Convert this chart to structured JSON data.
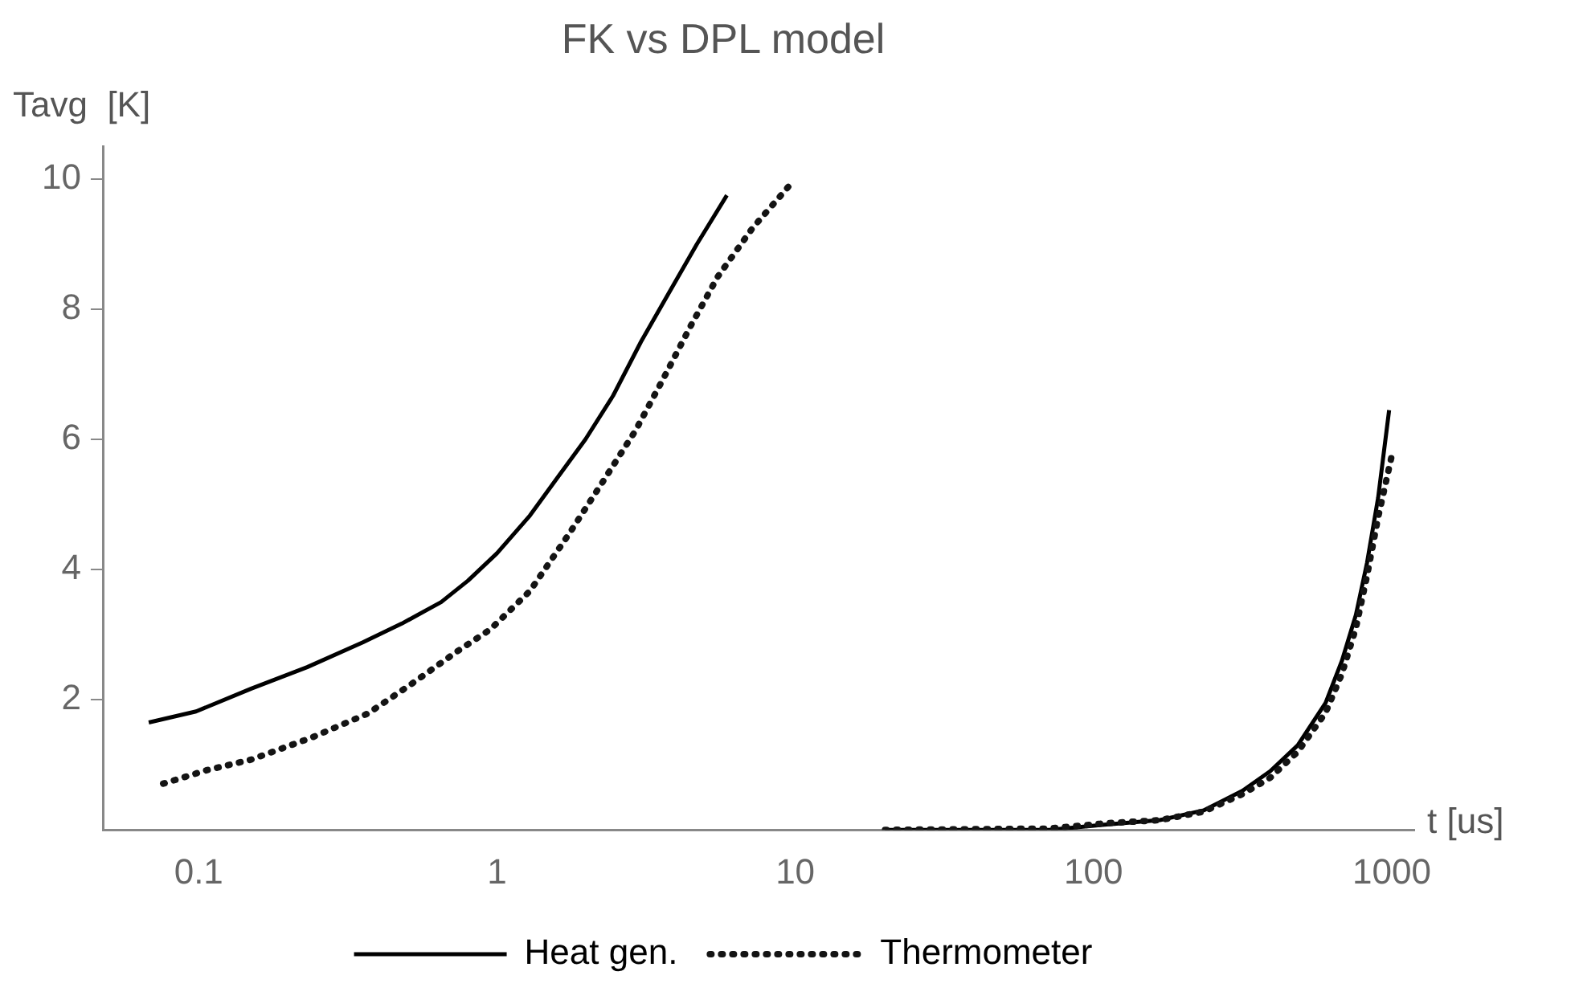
{
  "chart_data": {
    "type": "line",
    "title": "FK vs DPL model",
    "xlabel": "t [us]",
    "ylabel": "Tavg  [K]",
    "log": "x",
    "xlim": [
      0.048,
      1190
    ],
    "xticks": [
      0.1,
      1,
      10,
      100,
      1000
    ],
    "ylim": [
      0,
      10.5
    ],
    "yticks": [
      2,
      4,
      6,
      8,
      10
    ],
    "legend": "bottom",
    "marker": "none",
    "series": [
      {
        "name": "Heat gen.",
        "color": "#000000",
        "line_style": "solid",
        "x": [
          0.068,
          0.098,
          0.15,
          0.231,
          0.355,
          0.48,
          0.65,
          0.8,
          1.0,
          1.29,
          1.6,
          1.98,
          2.45,
          3.04,
          3.77,
          4.68,
          5.9,
          12,
          20,
          71,
          109,
          167,
          234,
          316,
          391,
          484,
          600,
          681,
          758,
          826,
          900,
          980
        ],
        "values": [
          1.65,
          1.82,
          2.17,
          2.5,
          2.88,
          3.17,
          3.5,
          3.83,
          4.25,
          4.83,
          5.42,
          6.0,
          6.67,
          7.5,
          8.25,
          9.0,
          9.75,
          null,
          0,
          0,
          0.08,
          0.15,
          0.3,
          0.6,
          0.9,
          1.3,
          1.95,
          2.6,
          3.3,
          4.1,
          5.1,
          6.45
        ]
      },
      {
        "name": "Thermometer",
        "color": "#141414",
        "line_style": "dotted",
        "x": [
          0.076,
          0.107,
          0.15,
          0.24,
          0.37,
          0.52,
          0.74,
          0.95,
          1.29,
          1.74,
          2.25,
          2.91,
          3.6,
          4.47,
          5.5,
          7.2,
          9.9,
          15,
          20,
          71,
          109,
          167,
          234,
          316,
          391,
          484,
          600,
          681,
          758,
          826,
          900,
          1000
        ],
        "values": [
          0.71,
          0.92,
          1.08,
          1.42,
          1.79,
          2.25,
          2.75,
          3.08,
          3.67,
          4.54,
          5.33,
          6.13,
          6.92,
          7.75,
          8.5,
          9.25,
          9.98,
          null,
          0,
          0.02,
          0.1,
          0.15,
          0.28,
          0.55,
          0.8,
          1.2,
          1.8,
          2.4,
          3.1,
          3.9,
          4.8,
          5.75
        ]
      }
    ]
  }
}
